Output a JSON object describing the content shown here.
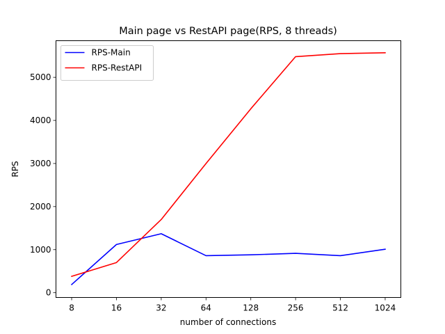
{
  "chart_data": {
    "type": "line",
    "title": "Main page vs RestAPI page(RPS, 8 threads)",
    "xlabel": "number of connections",
    "ylabel": "RPS",
    "x_scale": "log2",
    "x": [
      8,
      16,
      32,
      64,
      128,
      256,
      512,
      1024
    ],
    "x_tick_labels": [
      "8",
      "16",
      "32",
      "64",
      "128",
      "256",
      "512",
      "1024"
    ],
    "yticks": [
      0,
      1000,
      2000,
      3000,
      4000,
      5000
    ],
    "y_tick_labels": [
      "0",
      "1000",
      "2000",
      "3000",
      "4000",
      "5000"
    ],
    "ylim": [
      -110,
      5850
    ],
    "grid": false,
    "legend_position": "upper-left",
    "series": [
      {
        "name": "RPS-Main",
        "color": "#0000ff",
        "values": [
          190,
          1120,
          1370,
          860,
          880,
          915,
          860,
          1010
        ]
      },
      {
        "name": "RPS-RestAPI",
        "color": "#ff0000",
        "values": [
          380,
          700,
          1700,
          3000,
          4270,
          5480,
          5550,
          5570
        ]
      }
    ]
  }
}
